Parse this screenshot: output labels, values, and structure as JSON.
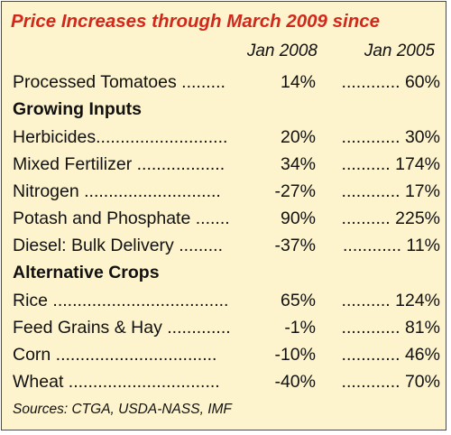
{
  "title": "Price Increases through March 2009 since",
  "columns": [
    "Jan 2008",
    "Jan 2005"
  ],
  "rows": [
    {
      "label": "Processed Tomatoes .........",
      "v2008": "14%",
      "v2005": "............ 60%"
    },
    {
      "label": "Herbicides...........................",
      "v2008": "20%",
      "v2005": "............ 30%"
    },
    {
      "label": "Mixed Fertilizer ..................",
      "v2008": "34%",
      "v2005": ".......... 174%"
    },
    {
      "label": "Nitrogen ............................",
      "v2008": "-27%",
      "v2005": "............ 17%"
    },
    {
      "label": "Potash and Phosphate .......",
      "v2008": "90%",
      "v2005": ".......... 225%"
    },
    {
      "label": "Diesel: Bulk Delivery .........",
      "v2008": "-37%",
      "v2005": "............ 11%"
    },
    {
      "label": "Rice ....................................",
      "v2008": "65%",
      "v2005": ".......... 124%"
    },
    {
      "label": "Feed Grains & Hay .............",
      "v2008": "-1%",
      "v2005": "............ 81%"
    },
    {
      "label": "Corn .................................",
      "v2008": "-10%",
      "v2005": "............ 46%"
    },
    {
      "label": "Wheat ...............................",
      "v2008": "-40%",
      "v2005": "............ 70%"
    }
  ],
  "sections": [
    "Growing Inputs",
    "Alternative Crops"
  ],
  "sources": "Sources: CTGA, USDA-NASS, IMF"
}
